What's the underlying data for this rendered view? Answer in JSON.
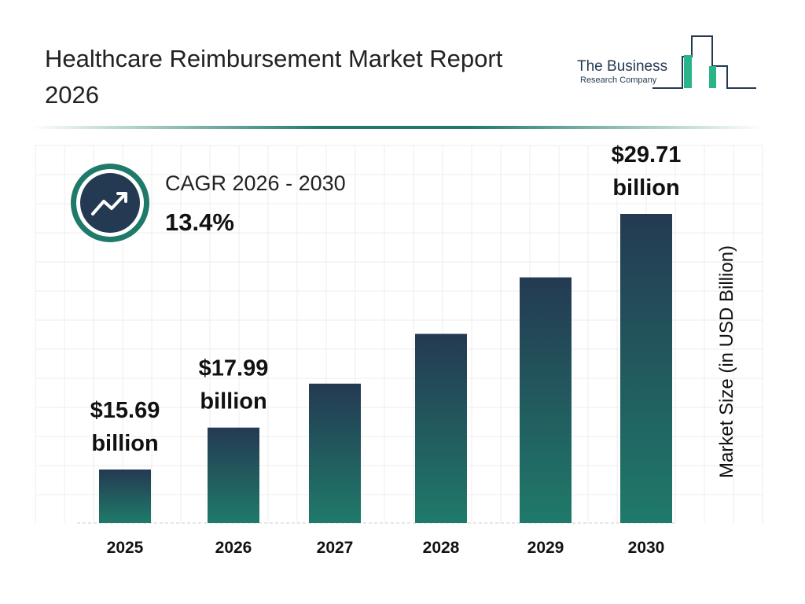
{
  "header": {
    "title": "Healthcare Reimbursement Market Report 2026"
  },
  "logo": {
    "line1": "The Business",
    "line2": "Research Company"
  },
  "cagr": {
    "label": "CAGR 2026 - 2030",
    "value": "13.4%",
    "icon": "trending-up-icon"
  },
  "colors": {
    "bar_top": "#243a52",
    "bar_bottom": "#1f7a6a",
    "accent": "#1f7a6a"
  },
  "chart_data": {
    "type": "bar",
    "title": "",
    "xlabel": "",
    "ylabel": "Market Size (in USD Billion)",
    "categories": [
      "2025",
      "2026",
      "2027",
      "2028",
      "2029",
      "2030"
    ],
    "values": [
      15.69,
      17.99,
      20.4,
      23.13,
      26.23,
      29.71
    ],
    "data_labels": [
      [
        "$15.69",
        "billion"
      ],
      [
        "$17.99",
        "billion"
      ],
      null,
      null,
      null,
      [
        "$29.71",
        "billion"
      ]
    ],
    "grid": true
  }
}
